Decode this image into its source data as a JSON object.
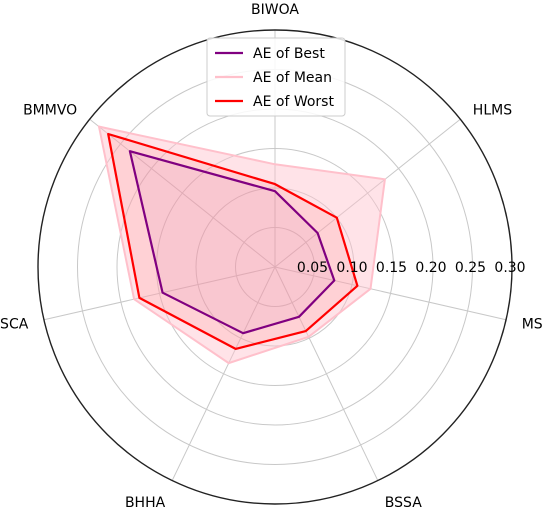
{
  "chart_data": {
    "type": "radar",
    "categories": [
      "BIWOA",
      "HLMS",
      "MS",
      "BSSA",
      "BHHA",
      "BSCA",
      "BMMVO"
    ],
    "radial_ticks": [
      "0.05",
      "0.10",
      "0.15",
      "0.20",
      "0.25",
      "0.30"
    ],
    "rlim": [
      0,
      0.3
    ],
    "grid": true,
    "legend_position": "top-center",
    "series": [
      {
        "name": "AE of Best",
        "color": "#800080",
        "filled": false,
        "values": [
          0.096,
          0.069,
          0.077,
          0.07,
          0.093,
          0.146,
          0.235
        ]
      },
      {
        "name": "AE of Mean",
        "color": "#ffc0cb",
        "filled": true,
        "values": [
          0.13,
          0.178,
          0.124,
          0.098,
          0.135,
          0.183,
          0.285
        ]
      },
      {
        "name": "AE of Worst",
        "color": "#ff0000",
        "filled": false,
        "values": [
          0.105,
          0.1,
          0.107,
          0.09,
          0.115,
          0.176,
          0.27
        ]
      }
    ]
  }
}
